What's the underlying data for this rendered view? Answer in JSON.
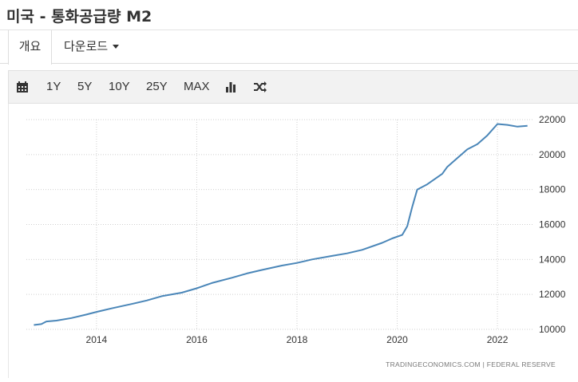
{
  "header": {
    "title": "미국 - 통화공급량 M2"
  },
  "tabs": {
    "overview": "개요",
    "download": "다운로드"
  },
  "toolbar": {
    "ranges": [
      "1Y",
      "5Y",
      "10Y",
      "25Y",
      "MAX"
    ],
    "icons": [
      "calendar-icon",
      "bar-chart-icon",
      "shuffle-icon"
    ]
  },
  "source": "TRADINGECONOMICS.COM  |  FEDERAL RESERVE",
  "colors": {
    "line": "#4a86b8",
    "grid": "#cfcfcf",
    "toolbar_bg": "#f2f2f2"
  },
  "chart_data": {
    "type": "line",
    "title": "",
    "xlabel": "",
    "ylabel": "",
    "xlim": [
      2012.6,
      2022.7
    ],
    "ylim": [
      10000,
      22000
    ],
    "x_ticks": [
      2014,
      2016,
      2018,
      2020,
      2022
    ],
    "y_ticks": [
      10000,
      12000,
      14000,
      16000,
      18000,
      20000,
      22000
    ],
    "grid": true,
    "y_axis_side": "right",
    "series": [
      {
        "x": [
          2012.75,
          2012.9,
          2013.0,
          2013.2,
          2013.5,
          2013.8,
          2014.0,
          2014.3,
          2014.7,
          2015.0,
          2015.3,
          2015.7,
          2016.0,
          2016.3,
          2016.7,
          2017.0,
          2017.3,
          2017.7,
          2018.0,
          2018.3,
          2018.7,
          2019.0,
          2019.3,
          2019.7,
          2019.9,
          2020.1,
          2020.2,
          2020.3,
          2020.4,
          2020.6,
          2020.9,
          2021.0,
          2021.2,
          2021.4,
          2021.6,
          2021.8,
          2022.0,
          2022.2,
          2022.4,
          2022.6
        ],
        "y": [
          10250,
          10300,
          10450,
          10500,
          10650,
          10850,
          11000,
          11200,
          11450,
          11650,
          11900,
          12100,
          12350,
          12650,
          12950,
          13200,
          13400,
          13650,
          13800,
          14000,
          14200,
          14350,
          14550,
          14950,
          15200,
          15400,
          15900,
          17000,
          18000,
          18300,
          18900,
          19300,
          19800,
          20300,
          20600,
          21100,
          21750,
          21700,
          21600,
          21650
        ]
      }
    ]
  }
}
